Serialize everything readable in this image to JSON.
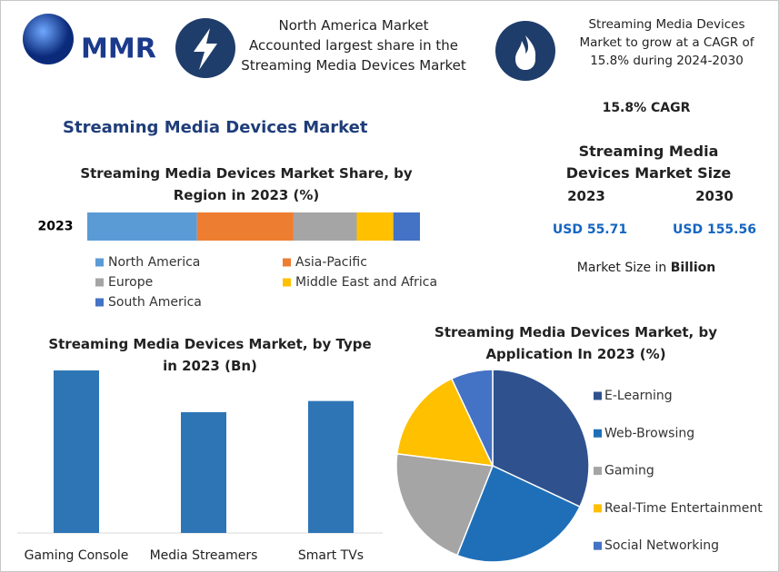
{
  "header": {
    "logo": "MMR",
    "note1": [
      "North America Market",
      "Accounted largest share in the",
      "Streaming Media Devices Market"
    ],
    "note2": [
      "Streaming Media Devices",
      "Market to grow at a CAGR of",
      "15.8% during 2024-2030"
    ]
  },
  "title": "Streaming Media Devices Market",
  "stats": {
    "cagr": "15.8% CAGR",
    "size_title": "Streaming Media Devices Market Size",
    "years": [
      "2023",
      "2030"
    ],
    "values": [
      "USD 55.71",
      "USD 155.56"
    ],
    "unit_note": "Market Size in",
    "unit_bold": "Billion"
  },
  "chart_data": [
    {
      "type": "bar",
      "stacked": true,
      "orientation": "horizontal",
      "title": "Streaming Media Devices Market Share, by Region in 2023 (%)",
      "categories": [
        "2023"
      ],
      "series": [
        {
          "name": "North America",
          "color": "#5b9bd5",
          "values": [
            33
          ]
        },
        {
          "name": "Asia-Pacific",
          "color": "#ed7d31",
          "values": [
            29
          ]
        },
        {
          "name": "Europe",
          "color": "#a5a5a5",
          "values": [
            19
          ]
        },
        {
          "name": "Middle East and Africa",
          "color": "#ffc000",
          "values": [
            11
          ]
        },
        {
          "name": "South America",
          "color": "#4472c4",
          "values": [
            8
          ]
        }
      ]
    },
    {
      "type": "bar",
      "title": "Streaming Media Devices Market, by Type in 2023 (Bn)",
      "categories": [
        "Gaming Console",
        "Media Streamers",
        "Smart TVs"
      ],
      "values": [
        21.8,
        16.2,
        17.7
      ],
      "color": "#2e75b6"
    },
    {
      "type": "pie",
      "title": "Streaming Media Devices Market, by Application In 2023 (%)",
      "categories": [
        "E-Learning",
        "Web-Browsing",
        "Gaming",
        "Real-Time Entertainment",
        "Social Networking"
      ],
      "values": [
        32,
        24,
        21,
        16,
        7
      ],
      "colors": [
        "#2f528f",
        "#1f6fb8",
        "#a5a5a5",
        "#ffc000",
        "#4472c4"
      ]
    }
  ]
}
